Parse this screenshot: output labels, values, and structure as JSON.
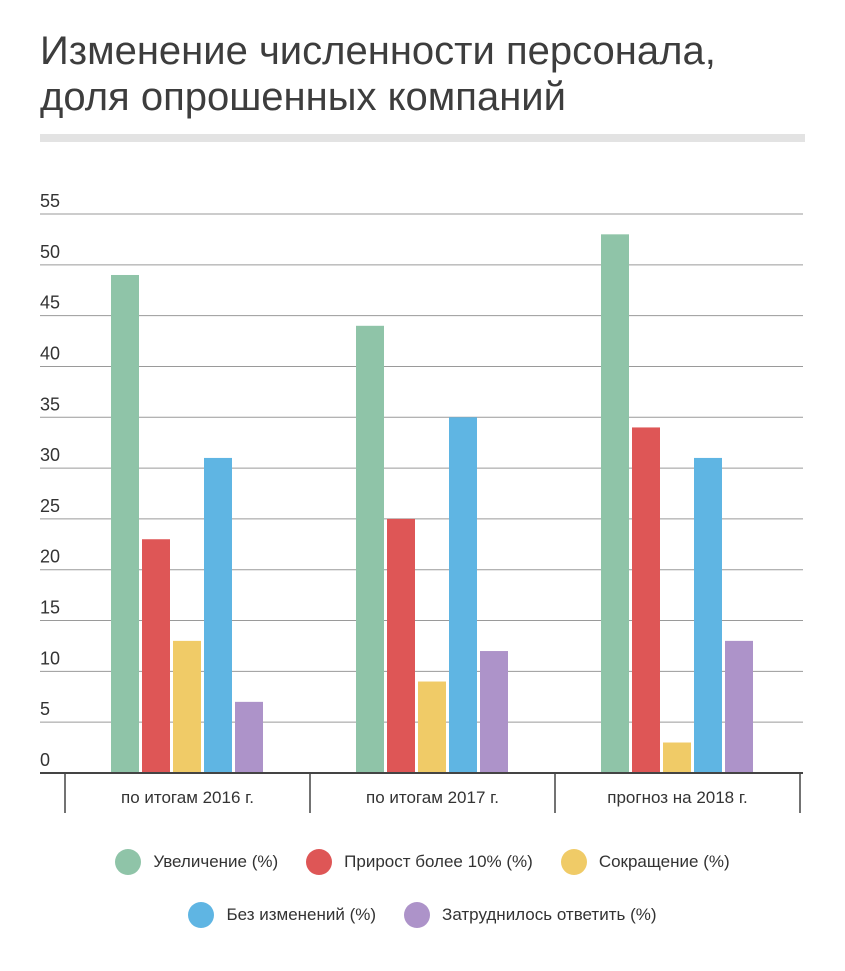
{
  "title_lines": [
    "Изменение численности персонала,",
    "доля опрошенных компаний"
  ],
  "colors": {
    "increase": "#8fc4a8",
    "growth10": "#de5656",
    "reduction": "#f0cb67",
    "nochange": "#5fb5e3",
    "hard": "#ad93c9",
    "grid": "#9a9a9a",
    "axis": "#444444",
    "text": "#333333"
  },
  "legend": {
    "row1": [
      {
        "label": "Увеличение (%)",
        "color": "#8fc4a8"
      },
      {
        "label": "Прирост более 10% (%)",
        "color": "#de5656"
      },
      {
        "label": "Сокращение (%)",
        "color": "#f0cb67"
      }
    ],
    "row2": [
      {
        "label": "Без изменений (%)",
        "color": "#5fb5e3"
      },
      {
        "label": "Затруднилось ответить (%)",
        "color": "#ad93c9"
      }
    ]
  },
  "chart_data": {
    "type": "bar",
    "title": "Изменение численности персонала, доля опрошенных компаний",
    "xlabel": "",
    "ylabel": "",
    "categories": [
      "по итогам 2016 г.",
      "по итогам 2017 г.",
      "прогноз на 2018 г."
    ],
    "ylim": [
      0,
      55
    ],
    "yticks": [
      0,
      5,
      10,
      15,
      20,
      25,
      30,
      35,
      40,
      45,
      50,
      55
    ],
    "grid": true,
    "legend_position": "bottom",
    "series": [
      {
        "name": "Увеличение (%)",
        "color": "#8fc4a8",
        "values": [
          49,
          44,
          53
        ]
      },
      {
        "name": "Прирост более 10% (%)",
        "color": "#de5656",
        "values": [
          23,
          25,
          34
        ]
      },
      {
        "name": "Сокращение (%)",
        "color": "#f0cb67",
        "values": [
          13,
          9,
          3
        ]
      },
      {
        "name": "Без изменений (%)",
        "color": "#5fb5e3",
        "values": [
          31,
          35,
          31
        ]
      },
      {
        "name": "Затруднилось ответить (%)",
        "color": "#ad93c9",
        "values": [
          7,
          12,
          13
        ]
      }
    ]
  }
}
